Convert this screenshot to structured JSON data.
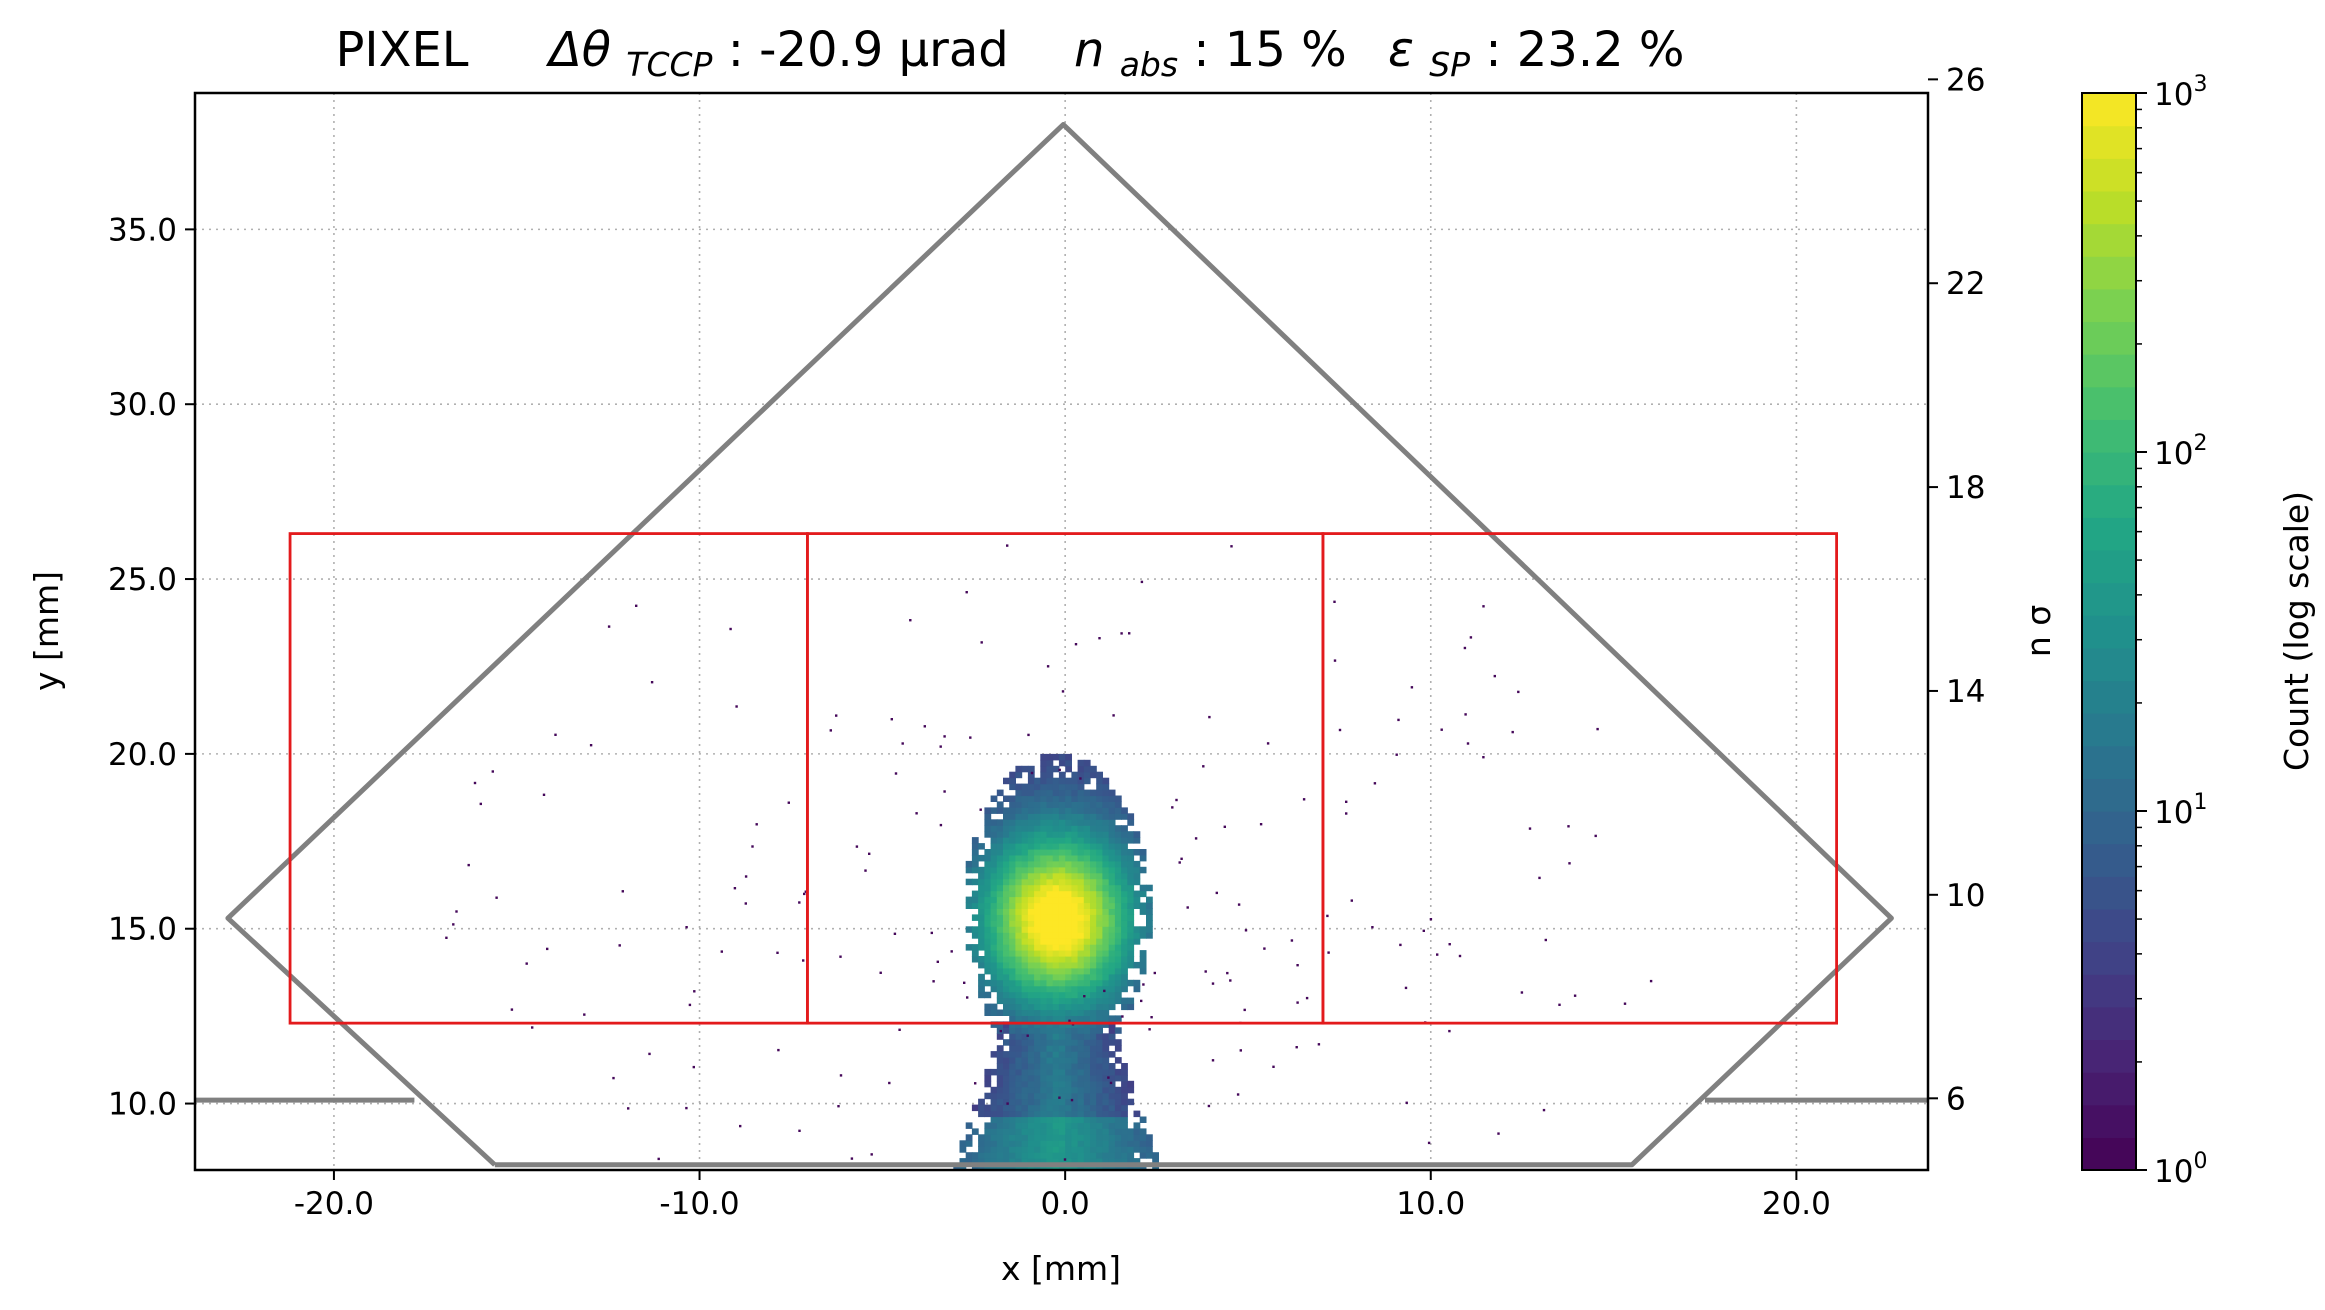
{
  "chart_data": {
    "type": "heatmap",
    "title": {
      "detector": "PIXEL",
      "delta_label": "Δθ",
      "delta_sub": "TCCP",
      "delta_value": ":  -20.9 μrad",
      "n_label": "n",
      "n_sub": "abs",
      "n_value": ": 15 %",
      "eps_label": "ε",
      "eps_sub": "SP",
      "eps_value": ": 23.2 %"
    },
    "xlabel": "x [mm]",
    "ylabel": "y [mm]",
    "y2label": "n σ",
    "xlim": [
      -23.8,
      23.6
    ],
    "ylim": [
      8.1,
      38.9
    ],
    "x_ticks": [
      {
        "value": -20,
        "label": "-20.0"
      },
      {
        "value": -10,
        "label": "-10.0"
      },
      {
        "value": 0,
        "label": "0.0"
      },
      {
        "value": 10,
        "label": "10.0"
      },
      {
        "value": 20,
        "label": "20.0"
      }
    ],
    "y_ticks": [
      {
        "value": 10,
        "label": "10.0"
      },
      {
        "value": 15,
        "label": "15.0"
      },
      {
        "value": 20,
        "label": "20.0"
      },
      {
        "value": 25,
        "label": "25.0"
      },
      {
        "value": 30,
        "label": "30.0"
      },
      {
        "value": 35,
        "label": "35.0"
      }
    ],
    "y2_ticks": [
      {
        "y": 10.15,
        "label": "6"
      },
      {
        "y": 15.97,
        "label": "10"
      },
      {
        "y": 21.8,
        "label": "14"
      },
      {
        "y": 27.63,
        "label": "18"
      },
      {
        "y": 33.46,
        "label": "22"
      },
      {
        "y": 39.29,
        "label": "26"
      }
    ],
    "grid": true,
    "colorbar": {
      "label": "Count (log scale)",
      "scale": "log",
      "range": [
        1,
        1000
      ],
      "ticks": [
        {
          "value": 1,
          "base": "10",
          "exp": "0"
        },
        {
          "value": 10,
          "base": "10",
          "exp": "1"
        },
        {
          "value": 100,
          "base": "10",
          "exp": "2"
        },
        {
          "value": 1000,
          "base": "10",
          "exp": "3"
        }
      ],
      "colormap": "viridis"
    },
    "heatmap": {
      "description_peak": {
        "x": -0.3,
        "y": 15.2,
        "count_max": 1000
      },
      "core_sigma_x_mm": 1.4,
      "core_sigma_y_mm": 1.6
    },
    "overlays": {
      "envelope": {
        "color": "#808080",
        "points": [
          [
            -15.6,
            8.25
          ],
          [
            -22.9,
            15.3
          ],
          [
            -0.05,
            38.0
          ],
          [
            22.6,
            15.3
          ],
          [
            15.5,
            8.25
          ],
          [
            -15.6,
            8.25
          ]
        ]
      },
      "envelope_left_stub": {
        "color": "#808080",
        "points": [
          [
            -23.8,
            10.1
          ],
          [
            -17.8,
            10.1
          ]
        ]
      },
      "envelope_right_stub": {
        "color": "#808080",
        "points": [
          [
            17.5,
            10.1
          ],
          [
            23.6,
            10.1
          ]
        ]
      },
      "boxes": {
        "color": "#e31a1c",
        "rects": [
          {
            "x0": -21.2,
            "x1": -7.05,
            "y0": 12.3,
            "y1": 26.3
          },
          {
            "x0": -7.05,
            "x1": 7.05,
            "y0": 12.3,
            "y1": 26.3
          },
          {
            "x0": 7.05,
            "x1": 21.1,
            "y0": 12.3,
            "y1": 26.3
          }
        ]
      }
    },
    "colors": {
      "envelope": "#808080",
      "boxes": "#e31a1c",
      "grid": "#b0b0b0"
    }
  }
}
